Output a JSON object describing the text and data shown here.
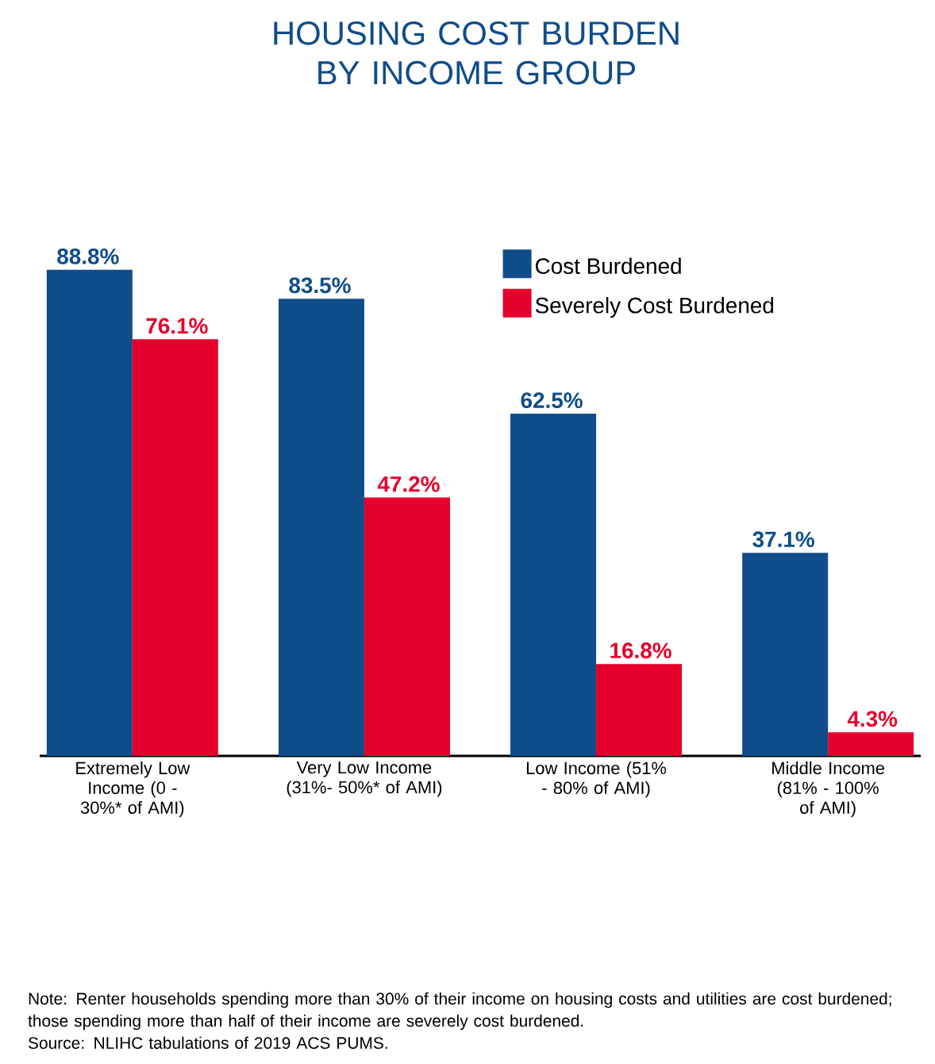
{
  "chart_data": {
    "type": "bar",
    "title": "HOUSING COST BURDEN BY INCOME GROUP",
    "categories": [
      "Extremely Low Income (0 - 30%* of AMI)",
      "Very Low Income (31%- 50%* of AMI)",
      "Low Income (51% - 80% of AMI)",
      "Middle Income (81% - 100% of AMI)"
    ],
    "series": [
      {
        "name": "Cost Burdened",
        "color": "#0f4c8a",
        "values": [
          88.8,
          83.5,
          62.5,
          37.1
        ],
        "value_labels": [
          "88.8%",
          "83.5%",
          "62.5%",
          "37.1%"
        ]
      },
      {
        "name": "Severely Cost Burdened",
        "color": "#e4002b",
        "values": [
          76.1,
          47.2,
          16.8,
          4.3
        ],
        "value_labels": [
          "76.1%",
          "47.2%",
          "16.8%",
          "4.3%"
        ]
      }
    ],
    "legend": "top right",
    "grid": false,
    "annotations": [
      "Note: Renter households spending more than 30% of their income on housing costs and utilities are cost burdened; those spending more than half of their income are severely cost burdened.",
      "Source: NLIHC tabulations of 2019 ACS PUMS."
    ]
  }
}
